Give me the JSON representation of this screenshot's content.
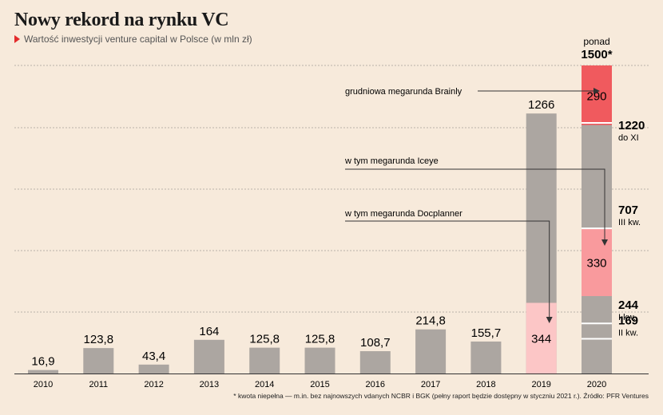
{
  "title": "Nowy rekord na rynku VC",
  "subtitle": "Wartość inwestycji venture capital w Polsce (w mln zł)",
  "footnote": "* kwota niepełna — m.in. bez najnowszych vdanych NCBR i BGK (pełny raport będzie dostępny w styczniu 2021 r.). Źródło: PFR Ventures",
  "colors": {
    "bar": "#aca6a1",
    "background": "#f7eadb",
    "brainly": "#f05a5e",
    "iceye": "#f99a9d",
    "docplanner": "#fcc6c6",
    "accent": "#e32b2b"
  },
  "chart_data": {
    "type": "bar",
    "categories": [
      "2010",
      "2011",
      "2012",
      "2013",
      "2014",
      "2015",
      "2016",
      "2017",
      "2018",
      "2019",
      "2020"
    ],
    "values": [
      16.9,
      123.8,
      43.4,
      164,
      125.8,
      125.8,
      108.7,
      214.8,
      155.7,
      1266,
      1500
    ],
    "value_labels": [
      "16,9",
      "123,8",
      "43,4",
      "164",
      "125,8",
      "125,8",
      "108,7",
      "214,8",
      "155,7",
      "1266",
      ""
    ],
    "ylim": [
      0,
      1500
    ],
    "grid": true,
    "annotations": {
      "docplanner": {
        "label": "w tym megarunda Docplanner",
        "value": 344,
        "value_label": "344",
        "year": "2019"
      },
      "iceye": {
        "label": "w tym megarunda Iceye",
        "value": 330,
        "value_label": "330",
        "year": "2020"
      },
      "brainly": {
        "label": "grudniowa megarunda Brainly",
        "value": 290,
        "value_label": "290",
        "year": "2020"
      }
    },
    "breakdown_2020": [
      {
        "value": 244,
        "label": "244",
        "sublabel": "I kw."
      },
      {
        "value": 169,
        "label": "169",
        "sublabel": "II kw."
      },
      {
        "value": 707,
        "label": "707",
        "sublabel": "III kw."
      },
      {
        "value": 1220,
        "label": "1220",
        "sublabel": "do XI"
      }
    ],
    "total_2020": {
      "prefix": "ponad",
      "label": "1500*"
    }
  }
}
